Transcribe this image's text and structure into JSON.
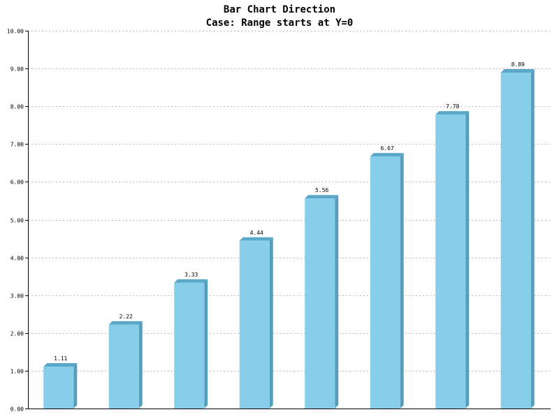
{
  "chart_data": {
    "type": "bar",
    "title": "Bar Chart Direction",
    "subtitle": "Case: Range starts at Y=0",
    "categories": [
      "",
      "",
      "",
      "",
      "",
      "",
      "",
      ""
    ],
    "values": [
      1.11,
      2.22,
      3.33,
      4.44,
      5.56,
      6.67,
      7.78,
      8.89
    ],
    "value_labels": [
      "1.11",
      "2.22",
      "3.33",
      "4.44",
      "5.56",
      "6.67",
      "7.78",
      "8.89"
    ],
    "y_ticks": [
      0,
      1,
      2,
      3,
      4,
      5,
      6,
      7,
      8,
      9,
      10
    ],
    "y_tick_labels": [
      "0.00",
      "1.00",
      "2.00",
      "3.00",
      "4.00",
      "5.00",
      "6.00",
      "7.00",
      "8.00",
      "9.00",
      "10.00"
    ],
    "xlabel": "",
    "ylabel": "",
    "ylim": [
      0,
      10
    ],
    "grid": true,
    "legend": "none"
  },
  "colors": {
    "bar_front": "#87ceeb",
    "bar_side": "#569fbc",
    "bar_top": "#5aa8c8",
    "grid": "#bbbbbb",
    "axis": "#000000"
  }
}
